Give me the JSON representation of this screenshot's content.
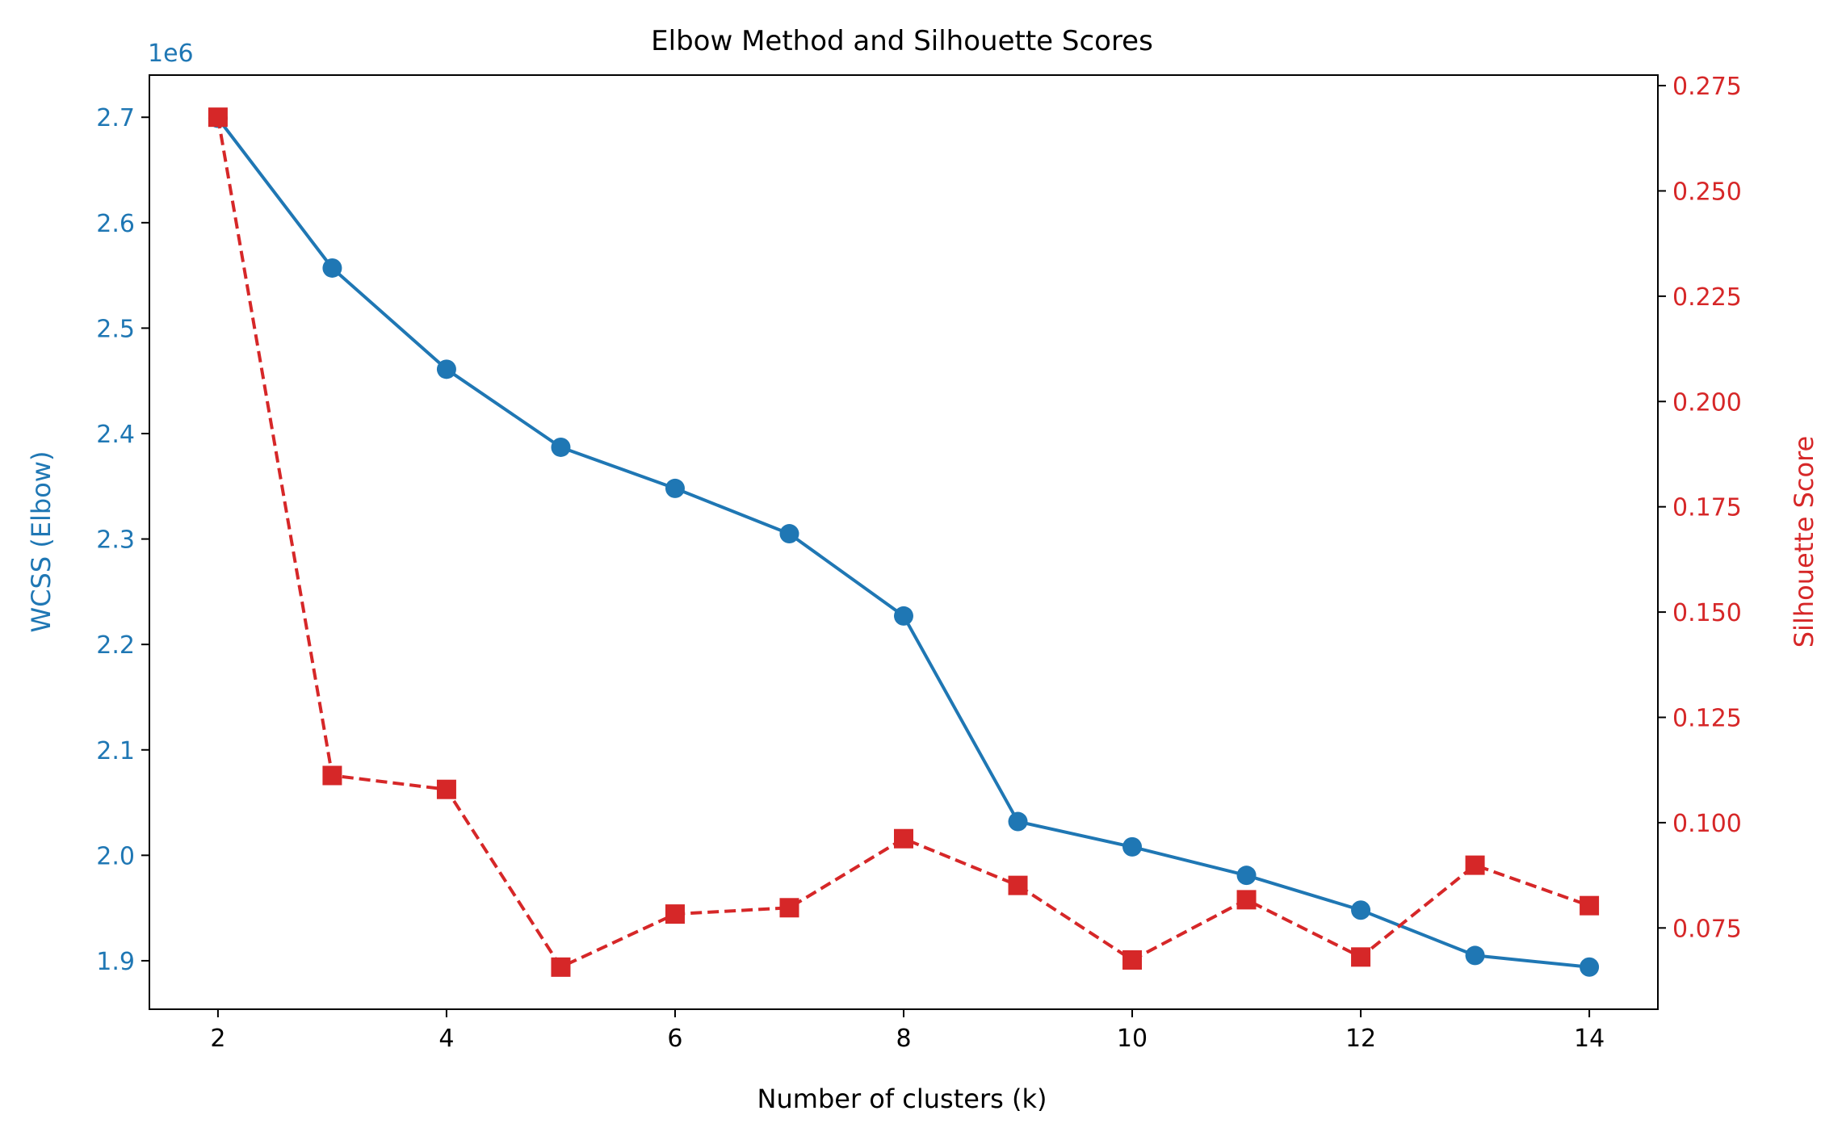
{
  "chart_data": {
    "type": "line",
    "title": "Elbow Method and Silhouette Scores",
    "xlabel": "Number of clusters (k)",
    "x": [
      2,
      3,
      4,
      5,
      6,
      7,
      8,
      9,
      10,
      11,
      12,
      13,
      14
    ],
    "xlim": [
      1.4,
      14.6
    ],
    "xticks": [
      2,
      4,
      6,
      8,
      10,
      12,
      14
    ],
    "left_axis": {
      "label": "WCSS (Elbow)",
      "offset_text": "1e6",
      "ylim": [
        1.854,
        2.74
      ],
      "ticks": [
        1.9,
        2.0,
        2.1,
        2.2,
        2.3,
        2.4,
        2.5,
        2.6,
        2.7
      ],
      "tick_labels": [
        "1.9",
        "2.0",
        "2.1",
        "2.2",
        "2.3",
        "2.4",
        "2.5",
        "2.6",
        "2.7"
      ],
      "color": "#1f77b4"
    },
    "right_axis": {
      "label": "Silhouette Score",
      "ylim": [
        0.0557,
        0.2775
      ],
      "ticks": [
        0.075,
        0.1,
        0.125,
        0.15,
        0.175,
        0.2,
        0.225,
        0.25,
        0.275
      ],
      "tick_labels": [
        "0.075",
        "0.100",
        "0.125",
        "0.150",
        "0.175",
        "0.200",
        "0.225",
        "0.250",
        "0.275"
      ],
      "color": "#d62728"
    },
    "series": [
      {
        "axis": "left",
        "color": "#1f77b4",
        "line_style": "solid",
        "marker": "circle",
        "values": [
          2.699,
          2.557,
          2.461,
          2.387,
          2.348,
          2.305,
          2.227,
          2.032,
          2.008,
          1.981,
          1.948,
          1.905,
          1.894
        ]
      },
      {
        "axis": "right",
        "color": "#d62728",
        "line_style": "dashed",
        "marker": "square",
        "values": [
          0.2675,
          0.1112,
          0.1079,
          0.0657,
          0.0783,
          0.0798,
          0.0962,
          0.0851,
          0.0674,
          0.0817,
          0.0681,
          0.0899,
          0.0803
        ]
      }
    ],
    "grid": false,
    "legend": "none"
  }
}
